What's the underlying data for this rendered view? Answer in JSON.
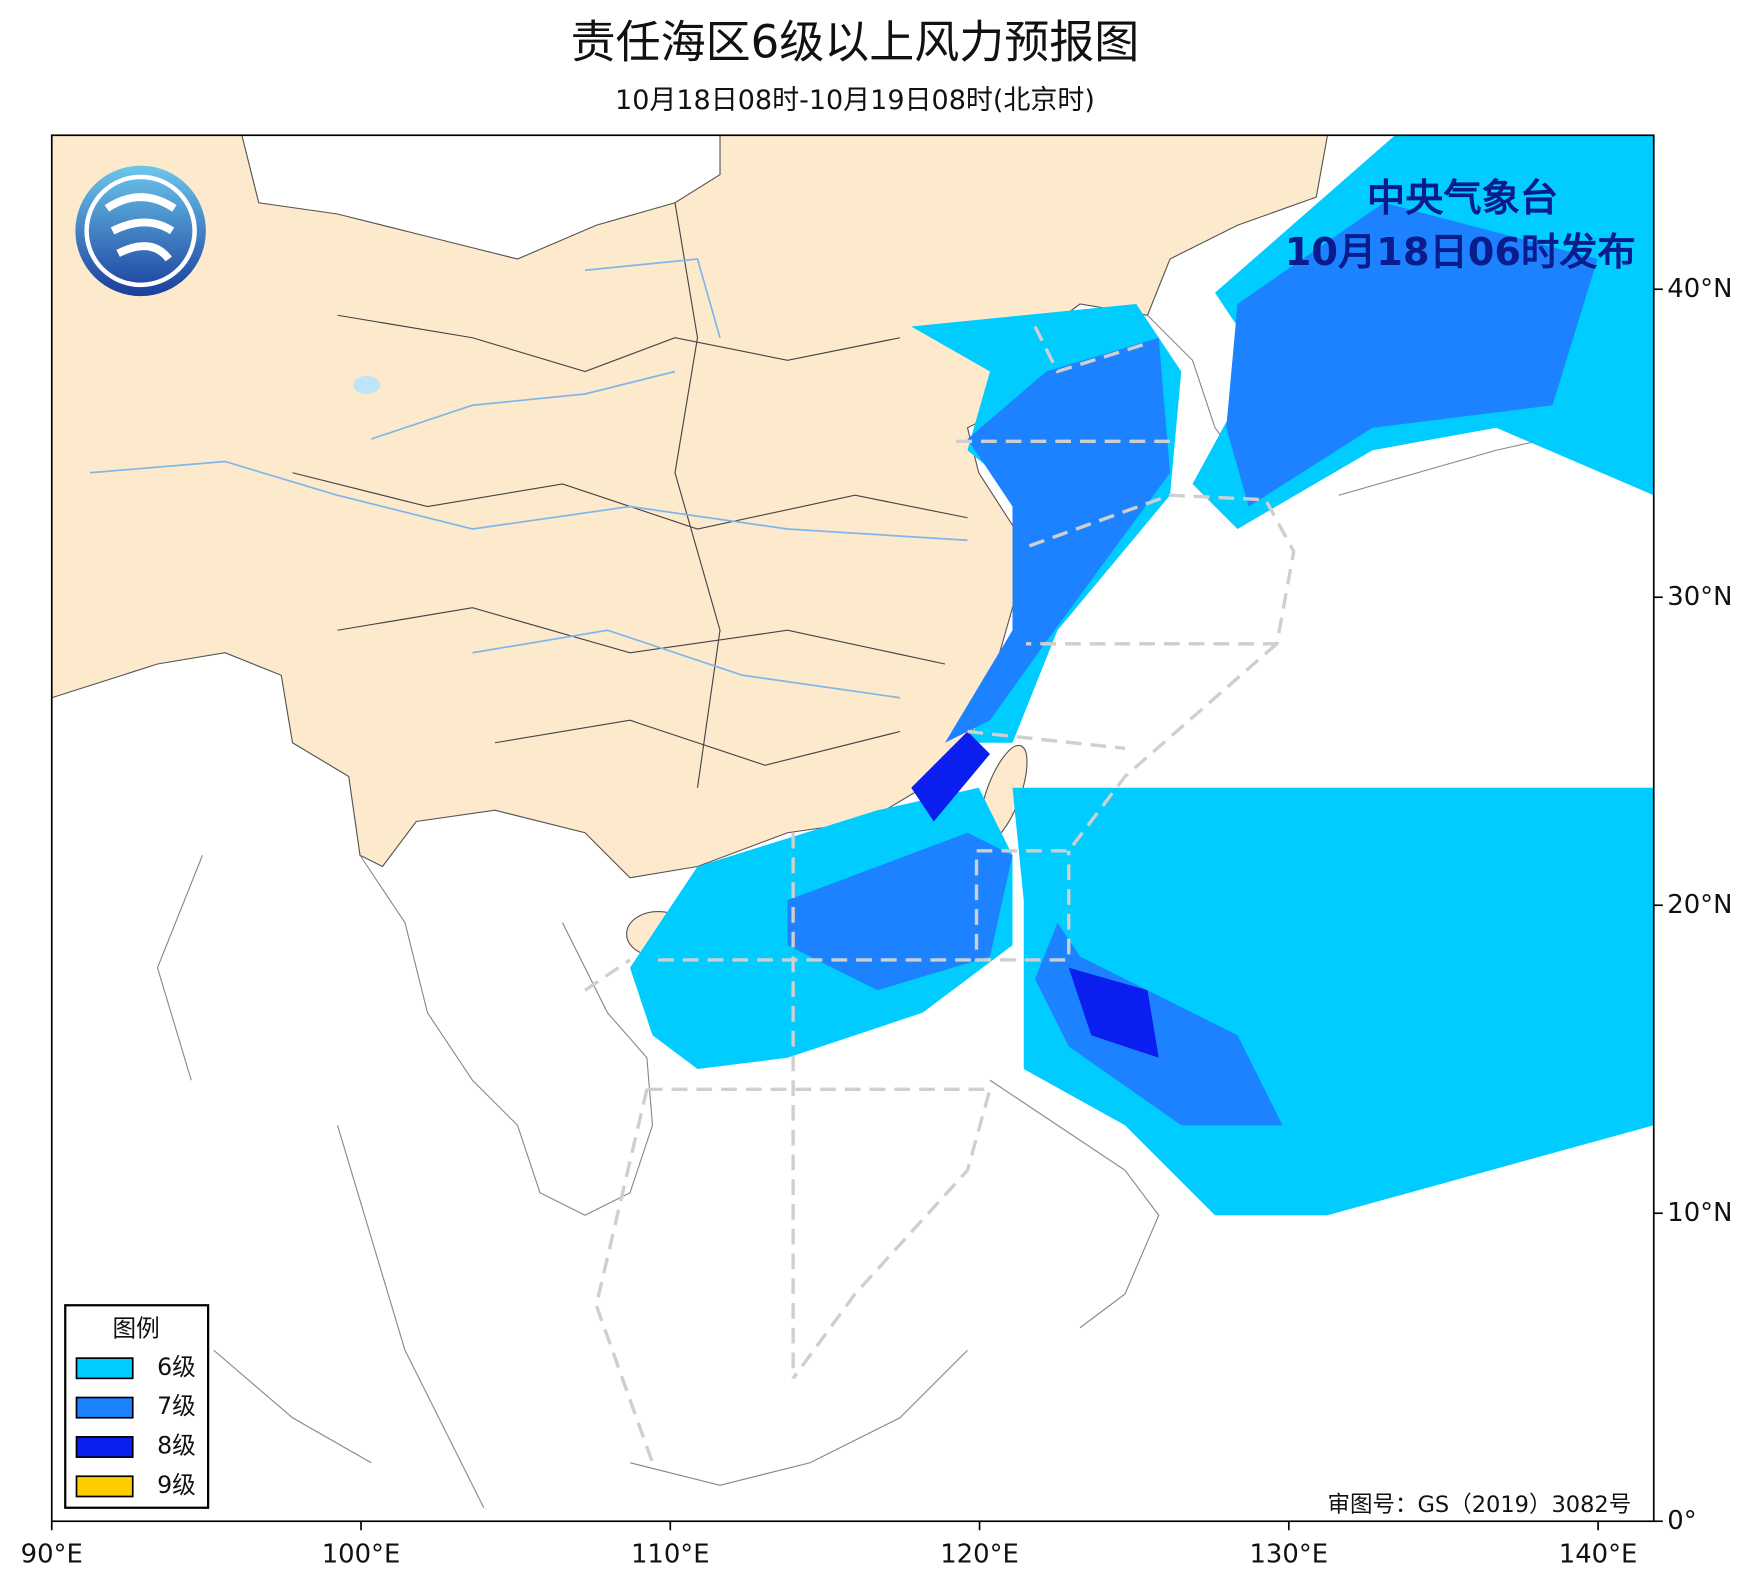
{
  "header": {
    "title": "责任海区6级以上风力预报图",
    "subtitle": "10月18日08时-10月19日08时(北京时)"
  },
  "issuer": {
    "name": "中央气象台",
    "time": "10月18日06时发布"
  },
  "axes": {
    "xlim": [
      90,
      141.8
    ],
    "ylim": [
      0,
      45
    ],
    "xticks": [
      {
        "value": 90,
        "label": "90°E"
      },
      {
        "value": 100,
        "label": "100°E"
      },
      {
        "value": 110,
        "label": "110°E"
      },
      {
        "value": 120,
        "label": "120°E"
      },
      {
        "value": 130,
        "label": "130°E"
      },
      {
        "value": 140,
        "label": "140°E"
      }
    ],
    "yticks": [
      {
        "value": 0,
        "label": "0°"
      },
      {
        "value": 10,
        "label": "10°N"
      },
      {
        "value": 20,
        "label": "20°N"
      },
      {
        "value": 30,
        "label": "30°N"
      },
      {
        "value": 40,
        "label": "40°N"
      }
    ]
  },
  "legend": {
    "title": "图例",
    "items": [
      {
        "label": "6级",
        "color": "#00ccff"
      },
      {
        "label": "7级",
        "color": "#1c82ff"
      },
      {
        "label": "8级",
        "color": "#0a1ef0"
      },
      {
        "label": "9级",
        "color": "#ffcc00"
      }
    ]
  },
  "note": "审图号：GS（2019）3082号"
}
